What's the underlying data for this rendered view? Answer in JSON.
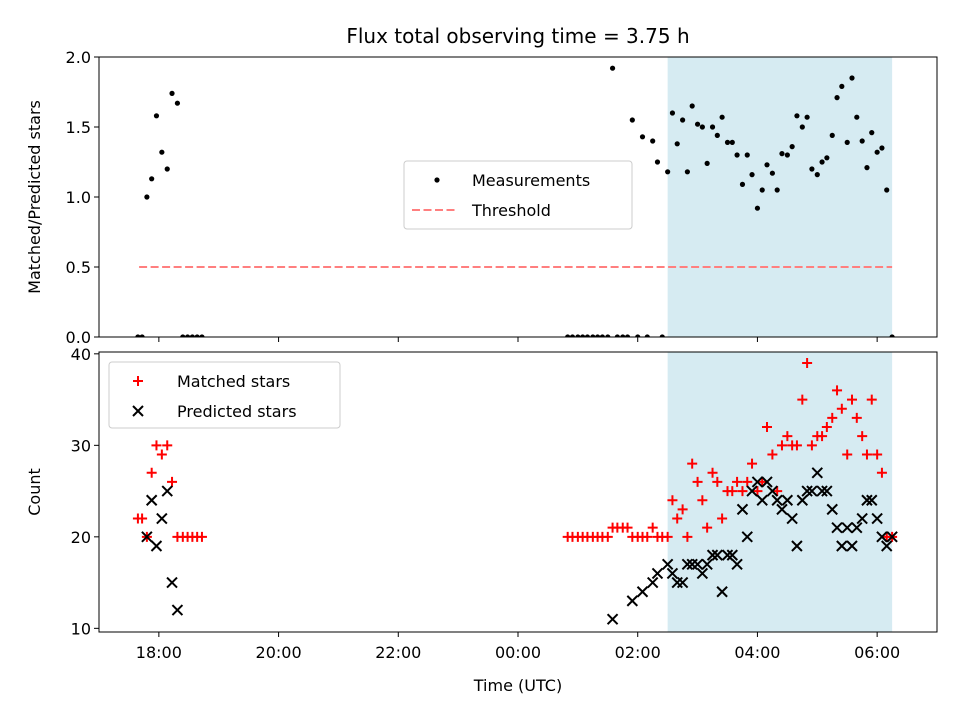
{
  "chart_data": {
    "title": "Flux total observing time = 3.75 h",
    "x_axis": {
      "label": "Time (UTC)",
      "range_hours": [
        -1.0,
        13.0
      ],
      "ticks": [
        {
          "hour": 0,
          "label": "18:00"
        },
        {
          "hour": 2,
          "label": "20:00"
        },
        {
          "hour": 4,
          "label": "22:00"
        },
        {
          "hour": 6,
          "label": "00:00"
        },
        {
          "hour": 8,
          "label": "02:00"
        },
        {
          "hour": 10,
          "label": "04:00"
        },
        {
          "hour": 12,
          "label": "06:00"
        }
      ]
    },
    "shaded_span_hours": [
      8.5,
      12.25
    ],
    "shade_color": "#add8e6",
    "panels": [
      {
        "type": "scatter",
        "ylabel": "Matched/Predicted stars",
        "ylim": [
          0,
          2.0
        ],
        "yticks": [
          {
            "value": 0.0,
            "label": "0.0"
          },
          {
            "value": 0.5,
            "label": "0.5"
          },
          {
            "value": 1.0,
            "label": "1.0"
          },
          {
            "value": 1.5,
            "label": "1.5"
          },
          {
            "value": 2.0,
            "label": "2.0"
          }
        ],
        "legend_position": "center",
        "threshold": {
          "name": "Threshold",
          "value": 0.5,
          "x_range": [
            -0.33,
            12.25
          ],
          "color": "#ff7f7f"
        },
        "series": [
          {
            "name": "Measurements",
            "marker": "dot",
            "color": "#000000",
            "points": [
              [
                -0.35,
                0
              ],
              [
                -0.28,
                0
              ],
              [
                -0.2,
                1.0
              ],
              [
                -0.12,
                1.13
              ],
              [
                -0.04,
                1.58
              ],
              [
                0.05,
                1.32
              ],
              [
                0.14,
                1.2
              ],
              [
                0.22,
                1.74
              ],
              [
                0.31,
                1.67
              ],
              [
                0.4,
                0
              ],
              [
                0.48,
                0
              ],
              [
                0.56,
                0
              ],
              [
                0.64,
                0
              ],
              [
                0.72,
                0
              ],
              [
                6.83,
                0
              ],
              [
                6.91,
                0
              ],
              [
                7.0,
                0
              ],
              [
                7.08,
                0
              ],
              [
                7.16,
                0
              ],
              [
                7.25,
                0
              ],
              [
                7.33,
                0
              ],
              [
                7.41,
                0
              ],
              [
                7.5,
                0
              ],
              [
                7.58,
                1.92
              ],
              [
                7.66,
                0
              ],
              [
                7.75,
                0
              ],
              [
                7.83,
                0
              ],
              [
                7.91,
                1.55
              ],
              [
                8.0,
                0
              ],
              [
                8.08,
                1.43
              ],
              [
                8.16,
                0
              ],
              [
                8.25,
                1.4
              ],
              [
                8.33,
                1.25
              ],
              [
                8.41,
                0
              ],
              [
                8.5,
                1.18
              ],
              [
                8.58,
                1.6
              ],
              [
                8.66,
                1.38
              ],
              [
                8.75,
                1.55
              ],
              [
                8.83,
                1.18
              ],
              [
                8.91,
                1.65
              ],
              [
                9.0,
                1.52
              ],
              [
                9.08,
                1.5
              ],
              [
                9.16,
                1.24
              ],
              [
                9.25,
                1.5
              ],
              [
                9.33,
                1.44
              ],
              [
                9.41,
                1.57
              ],
              [
                9.5,
                1.39
              ],
              [
                9.58,
                1.39
              ],
              [
                9.66,
                1.3
              ],
              [
                9.75,
                1.09
              ],
              [
                9.83,
                1.3
              ],
              [
                9.91,
                1.16
              ],
              [
                10.0,
                0.92
              ],
              [
                10.08,
                1.05
              ],
              [
                10.16,
                1.23
              ],
              [
                10.25,
                1.17
              ],
              [
                10.33,
                1.05
              ],
              [
                10.41,
                1.31
              ],
              [
                10.5,
                1.3
              ],
              [
                10.58,
                1.36
              ],
              [
                10.66,
                1.58
              ],
              [
                10.75,
                1.5
              ],
              [
                10.83,
                1.57
              ],
              [
                10.91,
                1.2
              ],
              [
                11.0,
                1.16
              ],
              [
                11.08,
                1.25
              ],
              [
                11.16,
                1.28
              ],
              [
                11.25,
                1.44
              ],
              [
                11.33,
                1.71
              ],
              [
                11.41,
                1.79
              ],
              [
                11.5,
                1.39
              ],
              [
                11.58,
                1.85
              ],
              [
                11.66,
                1.57
              ],
              [
                11.75,
                1.4
              ],
              [
                11.83,
                1.21
              ],
              [
                11.91,
                1.46
              ],
              [
                12.0,
                1.32
              ],
              [
                12.08,
                1.35
              ],
              [
                12.16,
                1.05
              ],
              [
                12.25,
                0
              ]
            ]
          }
        ]
      },
      {
        "type": "scatter",
        "ylabel": "Count",
        "ylim": [
          9.6,
          40.2
        ],
        "yticks": [
          {
            "value": 10,
            "label": "10"
          },
          {
            "value": 20,
            "label": "20"
          },
          {
            "value": 30,
            "label": "30"
          },
          {
            "value": 40,
            "label": "40"
          }
        ],
        "legend_position": "upper left",
        "series": [
          {
            "name": "Matched stars",
            "marker": "plus",
            "color": "#ff0000",
            "points": [
              [
                -0.35,
                22
              ],
              [
                -0.28,
                22
              ],
              [
                -0.2,
                20
              ],
              [
                -0.12,
                27
              ],
              [
                -0.04,
                30
              ],
              [
                0.05,
                29
              ],
              [
                0.14,
                30
              ],
              [
                0.22,
                26
              ],
              [
                0.31,
                20
              ],
              [
                0.4,
                20
              ],
              [
                0.48,
                20
              ],
              [
                0.56,
                20
              ],
              [
                0.64,
                20
              ],
              [
                0.72,
                20
              ],
              [
                6.83,
                20
              ],
              [
                6.91,
                20
              ],
              [
                7.0,
                20
              ],
              [
                7.08,
                20
              ],
              [
                7.16,
                20
              ],
              [
                7.25,
                20
              ],
              [
                7.33,
                20
              ],
              [
                7.41,
                20
              ],
              [
                7.5,
                20
              ],
              [
                7.58,
                21
              ],
              [
                7.66,
                21
              ],
              [
                7.75,
                21
              ],
              [
                7.83,
                21
              ],
              [
                7.91,
                20
              ],
              [
                8.0,
                20
              ],
              [
                8.08,
                20
              ],
              [
                8.16,
                20
              ],
              [
                8.25,
                21
              ],
              [
                8.33,
                20
              ],
              [
                8.41,
                20
              ],
              [
                8.5,
                20
              ],
              [
                8.58,
                24
              ],
              [
                8.66,
                22
              ],
              [
                8.75,
                23
              ],
              [
                8.83,
                20
              ],
              [
                8.91,
                28
              ],
              [
                9.0,
                26
              ],
              [
                9.08,
                24
              ],
              [
                9.16,
                21
              ],
              [
                9.25,
                27
              ],
              [
                9.33,
                26
              ],
              [
                9.41,
                22
              ],
              [
                9.5,
                25
              ],
              [
                9.58,
                25
              ],
              [
                9.66,
                26
              ],
              [
                9.75,
                25
              ],
              [
                9.83,
                26
              ],
              [
                9.91,
                28
              ],
              [
                10.0,
                25
              ],
              [
                10.08,
                26
              ],
              [
                10.16,
                32
              ],
              [
                10.25,
                29
              ],
              [
                10.33,
                25
              ],
              [
                10.41,
                30
              ],
              [
                10.5,
                31
              ],
              [
                10.58,
                30
              ],
              [
                10.66,
                30
              ],
              [
                10.75,
                35
              ],
              [
                10.83,
                39
              ],
              [
                10.91,
                30
              ],
              [
                11.0,
                31
              ],
              [
                11.08,
                31
              ],
              [
                11.16,
                32
              ],
              [
                11.25,
                33
              ],
              [
                11.33,
                36
              ],
              [
                11.41,
                34
              ],
              [
                11.5,
                29
              ],
              [
                11.58,
                35
              ],
              [
                11.66,
                33
              ],
              [
                11.75,
                31
              ],
              [
                11.83,
                29
              ],
              [
                11.91,
                35
              ],
              [
                12.0,
                29
              ],
              [
                12.08,
                27
              ],
              [
                12.16,
                20
              ],
              [
                12.25,
                20
              ]
            ]
          },
          {
            "name": "Predicted stars",
            "marker": "x",
            "color": "#000000",
            "points": [
              [
                -0.2,
                20
              ],
              [
                -0.12,
                24
              ],
              [
                -0.04,
                19
              ],
              [
                0.05,
                22
              ],
              [
                0.14,
                25
              ],
              [
                0.22,
                15
              ],
              [
                0.31,
                12
              ],
              [
                7.58,
                11
              ],
              [
                7.91,
                13
              ],
              [
                8.08,
                14
              ],
              [
                8.25,
                15
              ],
              [
                8.33,
                16
              ],
              [
                8.5,
                17
              ],
              [
                8.58,
                16
              ],
              [
                8.66,
                15
              ],
              [
                8.75,
                15
              ],
              [
                8.83,
                17
              ],
              [
                8.91,
                17
              ],
              [
                9.0,
                17
              ],
              [
                9.08,
                16
              ],
              [
                9.16,
                17
              ],
              [
                9.25,
                18
              ],
              [
                9.33,
                18
              ],
              [
                9.41,
                14
              ],
              [
                9.5,
                18
              ],
              [
                9.58,
                18
              ],
              [
                9.66,
                17
              ],
              [
                9.75,
                23
              ],
              [
                9.83,
                20
              ],
              [
                9.91,
                25
              ],
              [
                10.0,
                26
              ],
              [
                10.08,
                24
              ],
              [
                10.16,
                26
              ],
              [
                10.25,
                25
              ],
              [
                10.33,
                24
              ],
              [
                10.41,
                23
              ],
              [
                10.5,
                24
              ],
              [
                10.58,
                22
              ],
              [
                10.66,
                19
              ],
              [
                10.75,
                24
              ],
              [
                10.83,
                25
              ],
              [
                10.91,
                25
              ],
              [
                11.0,
                27
              ],
              [
                11.08,
                25
              ],
              [
                11.16,
                25
              ],
              [
                11.25,
                23
              ],
              [
                11.33,
                21
              ],
              [
                11.41,
                19
              ],
              [
                11.5,
                21
              ],
              [
                11.58,
                19
              ],
              [
                11.66,
                21
              ],
              [
                11.75,
                22
              ],
              [
                11.83,
                24
              ],
              [
                11.91,
                24
              ],
              [
                12.0,
                22
              ],
              [
                12.08,
                20
              ],
              [
                12.16,
                19
              ],
              [
                12.25,
                20
              ]
            ]
          }
        ]
      }
    ]
  }
}
